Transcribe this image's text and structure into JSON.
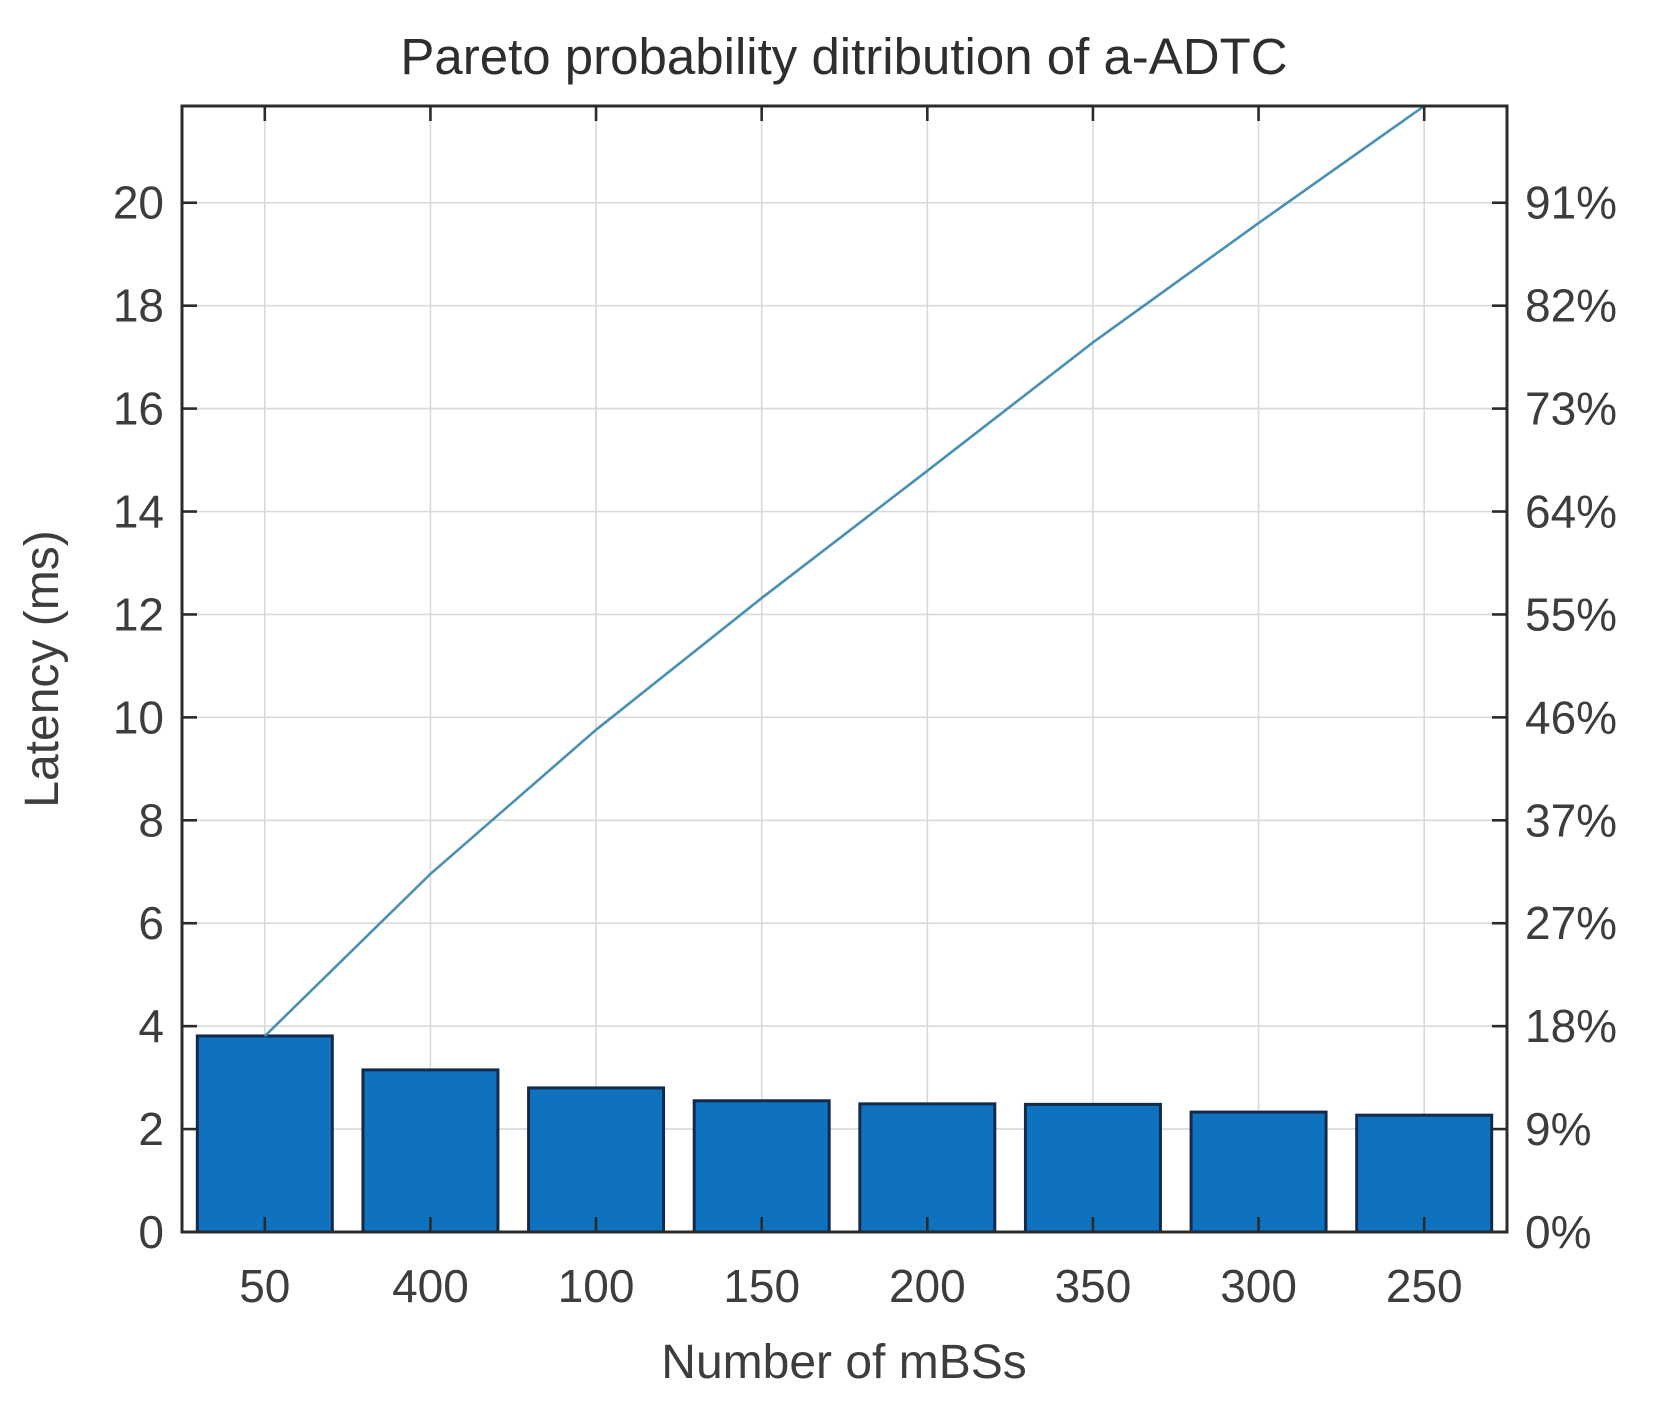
{
  "title": "Pareto probability ditribution of a-ADTC",
  "chart_data": {
    "type": "bar",
    "subtype": "pareto-with-cumulative-line",
    "title": "Pareto probability ditribution of a-ADTC",
    "xlabel": "Number of mBSs",
    "ylabel": "Latency (ms)",
    "categories": [
      "50",
      "400",
      "100",
      "150",
      "200",
      "350",
      "300",
      "250"
    ],
    "series": [
      {
        "name": "latency-bars",
        "type": "bar",
        "values": [
          3.81,
          3.15,
          2.8,
          2.55,
          2.49,
          2.48,
          2.33,
          2.27
        ]
      },
      {
        "name": "cumulative-percent-line",
        "type": "line",
        "values_percent": [
          17.4,
          31.8,
          44.6,
          56.3,
          67.6,
          79.0,
          89.6,
          100.0
        ]
      }
    ],
    "ylim_left": [
      0,
      21.88
    ],
    "yticks_left": [
      0,
      2,
      4,
      6,
      8,
      10,
      12,
      14,
      16,
      18,
      20
    ],
    "ytick_labels_left": [
      "0",
      "2",
      "4",
      "6",
      "8",
      "10",
      "12",
      "14",
      "16",
      "18",
      "20"
    ],
    "ytick_labels_right": [
      "0%",
      "9%",
      "18%",
      "27%",
      "37%",
      "46%",
      "55%",
      "64%",
      "73%",
      "82%",
      "91%"
    ],
    "grid": true,
    "legend": "none",
    "colors": {
      "bar_fill": "#0f72bf",
      "bar_edge": "#132a4a",
      "line": "#4a90b5",
      "grid": "#d9d9d9",
      "axis": "#2b2b2b",
      "text": "#3d3d3d"
    }
  }
}
